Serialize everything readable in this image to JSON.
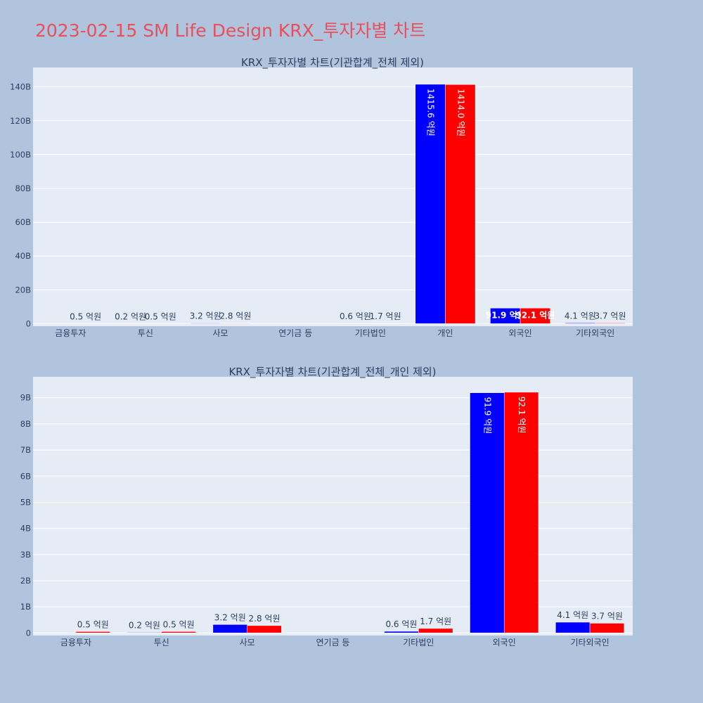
{
  "title": "2023-02-15 SM Life Design KRX_투자자별 차트",
  "colors": {
    "background": "#b0c4de",
    "plot_bg": "#e5ecf6",
    "title": "#e8505b",
    "series_a": "#0000ff",
    "series_b": "#ff0000"
  },
  "chart_data": [
    {
      "type": "bar",
      "title": "KRX_투자자별 차트(기관합계_전체 제외)",
      "categories": [
        "금융투자",
        "투신",
        "사모",
        "연기금 등",
        "기타법인",
        "개인",
        "외국인",
        "기타외국인"
      ],
      "series": [
        {
          "values": [
            0.0,
            0.02,
            0.32,
            0.0,
            0.06,
            141.56,
            9.19,
            0.41
          ],
          "labels": [
            "",
            "0.2 억원",
            "3.2 억원",
            "",
            "0.6 억원",
            "1415.6 억원",
            "91.9 억원",
            "4.1 억원"
          ]
        },
        {
          "values": [
            0.05,
            0.05,
            0.28,
            0.0,
            0.17,
            141.4,
            9.21,
            0.37
          ],
          "labels": [
            "0.5 억원",
            "0.5 억원",
            "2.8 억원",
            "",
            "1.7 억원",
            "1414.0 억원",
            "92.1 억원",
            "3.7 억원"
          ]
        }
      ],
      "yticks": [
        0,
        20,
        40,
        60,
        80,
        100,
        120,
        140
      ],
      "ytick_labels": [
        "0",
        "20B",
        "40B",
        "60B",
        "80B",
        "100B",
        "120B",
        "140B"
      ],
      "ylim": [
        -1.5,
        151.5
      ]
    },
    {
      "type": "bar",
      "title": "KRX_투자자별 차트(기관합계_전체_개인 제외)",
      "categories": [
        "금융투자",
        "투신",
        "사모",
        "연기금 등",
        "기타법인",
        "외국인",
        "기타외국인"
      ],
      "series": [
        {
          "values": [
            0.0,
            0.02,
            0.32,
            0.0,
            0.06,
            9.19,
            0.41
          ],
          "labels": [
            "",
            "0.2 억원",
            "3.2 억원",
            "",
            "0.6 억원",
            "91.9 억원",
            "4.1 억원"
          ]
        },
        {
          "values": [
            0.05,
            0.05,
            0.28,
            0.0,
            0.17,
            9.21,
            0.37
          ],
          "labels": [
            "0.5 억원",
            "0.5 억원",
            "2.8 억원",
            "",
            "1.7 억원",
            "92.1 억원",
            "3.7 억원"
          ]
        }
      ],
      "yticks": [
        0,
        1,
        2,
        3,
        4,
        5,
        6,
        7,
        8,
        9
      ],
      "ytick_labels": [
        "0",
        "1B",
        "2B",
        "3B",
        "4B",
        "5B",
        "6B",
        "7B",
        "8B",
        "9B"
      ],
      "ylim": [
        -0.1,
        9.8
      ]
    }
  ]
}
